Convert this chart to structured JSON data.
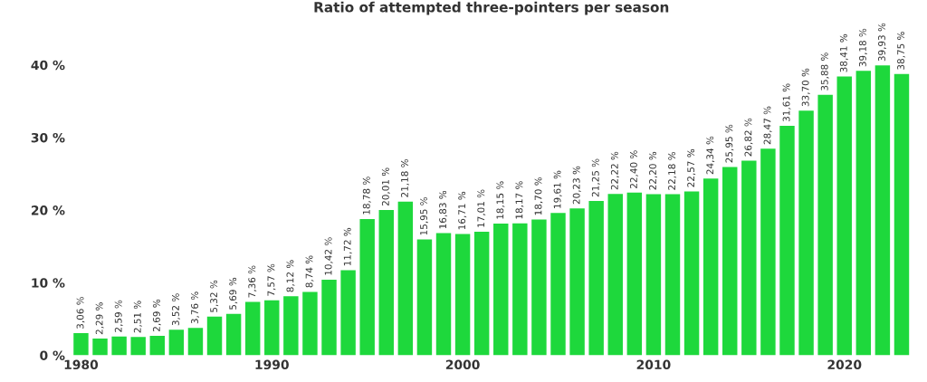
{
  "chart_data": {
    "type": "bar",
    "title": "Ratio of attempted three-pointers per season",
    "x": [
      1980,
      1981,
      1982,
      1983,
      1984,
      1985,
      1986,
      1987,
      1988,
      1989,
      1990,
      1991,
      1992,
      1993,
      1994,
      1995,
      1996,
      1997,
      1998,
      1999,
      2000,
      2001,
      2002,
      2003,
      2004,
      2005,
      2006,
      2007,
      2008,
      2009,
      2010,
      2011,
      2012,
      2013,
      2014,
      2015,
      2016,
      2017,
      2018,
      2019,
      2020,
      2021,
      2022,
      2023
    ],
    "values": [
      3.06,
      2.29,
      2.59,
      2.51,
      2.69,
      3.52,
      3.76,
      5.32,
      5.69,
      7.36,
      7.57,
      8.12,
      8.74,
      10.42,
      11.72,
      18.78,
      20.01,
      21.18,
      15.95,
      16.83,
      16.71,
      17.01,
      18.15,
      18.17,
      18.7,
      19.61,
      20.23,
      21.25,
      22.22,
      22.4,
      22.2,
      22.18,
      22.57,
      24.34,
      25.95,
      26.82,
      28.47,
      31.61,
      33.7,
      35.88,
      38.41,
      39.18,
      39.93,
      38.75
    ],
    "value_labels": [
      "3,06 %",
      "2,29 %",
      "2,59 %",
      "2,51 %",
      "2,69 %",
      "3,52 %",
      "3,76 %",
      "5,32 %",
      "5,69 %",
      "7,36 %",
      "7,57 %",
      "8,12 %",
      "8,74 %",
      "10,42 %",
      "11,72 %",
      "18,78 %",
      "20,01 %",
      "21,18 %",
      "15,95 %",
      "16,83 %",
      "16,71 %",
      "17,01 %",
      "18,15 %",
      "18,17 %",
      "18,70 %",
      "19,61 %",
      "20,23 %",
      "21,25 %",
      "22,22 %",
      "22,40 %",
      "22,20 %",
      "22,18 %",
      "22,57 %",
      "24,34 %",
      "25,95 %",
      "26,82 %",
      "28,47 %",
      "31,61 %",
      "33,70 %",
      "35,88 %",
      "38,41 %",
      "39,18 %",
      "39,93 %",
      "38,75 %"
    ],
    "color": "#1ed83c",
    "xlim": [
      1979.4,
      2023.6
    ],
    "xticks": [
      1980,
      1990,
      2000,
      2010,
      2020
    ],
    "ylim": [
      0,
      40
    ],
    "yticks": [
      {
        "value": 0,
        "label": "0 %"
      },
      {
        "value": 10,
        "label": "10 %"
      },
      {
        "value": 20,
        "label": "20 %"
      },
      {
        "value": 30,
        "label": "30 %"
      },
      {
        "value": 40,
        "label": "40 %"
      }
    ],
    "grid": false,
    "legend": false
  }
}
